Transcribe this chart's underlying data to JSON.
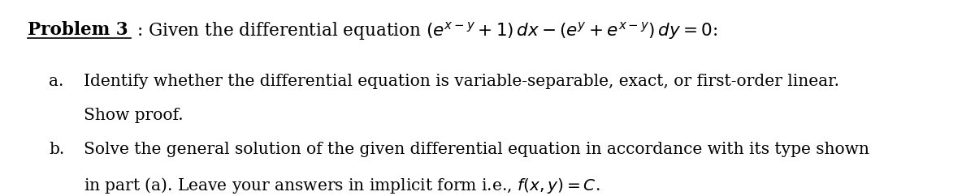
{
  "bg_color": "#ffffff",
  "title_label": "Problem 3",
  "title_rest": ": Given the differential equation $(e^{x-y} + 1)\\, dx - (e^{y} + e^{x-y})\\, dy = 0$:",
  "item_a_label": "a.",
  "item_a_line1": "Identify whether the differential equation is variable-separable, exact, or first-order linear.",
  "item_a_line2": "Show proof.",
  "item_b_label": "b.",
  "item_b_line1": "Solve the general solution of the given differential equation in accordance with its type shown",
  "item_b_line2": "in part (a). Leave your answers in implicit form i.e., $f(x, y) = C$.",
  "font_size_title": 15.5,
  "font_size_body": 14.5,
  "text_color": "#000000"
}
